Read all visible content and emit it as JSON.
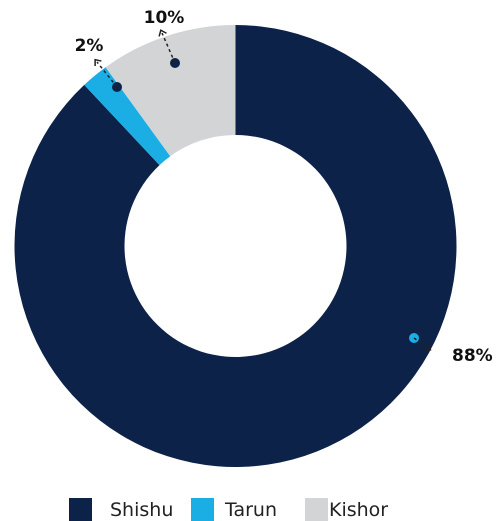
{
  "chart_data": {
    "type": "pie",
    "variant": "donut",
    "categories": [
      "Shishu",
      "Tarun",
      "Kishor"
    ],
    "values": [
      88,
      2,
      10
    ],
    "labels": [
      "88%",
      "2%",
      "10%"
    ],
    "colors": [
      "#0c2248",
      "#1aaee5",
      "#d3d4d6"
    ],
    "annotation_dot_colors": [
      "#1aaee5",
      "#0c2248",
      "#0c2248"
    ],
    "legend_position": "bottom"
  }
}
